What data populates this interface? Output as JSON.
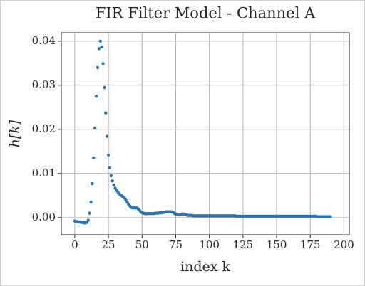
{
  "chart_data": {
    "type": "scatter",
    "title": "FIR Filter Model - Channel A",
    "x_label": "index k",
    "y_label": "h[k]",
    "x": [
      0,
      1,
      2,
      3,
      4,
      5,
      6,
      7,
      8,
      9,
      10,
      11,
      12,
      13,
      14,
      15,
      16,
      17,
      18,
      19,
      20,
      21,
      22,
      23,
      24,
      25,
      26,
      27,
      28,
      29,
      30,
      31,
      32,
      33,
      34,
      35,
      36,
      37,
      38,
      39,
      40,
      41,
      42,
      43,
      44,
      45,
      46,
      47,
      48,
      49,
      50,
      51,
      52,
      53,
      54,
      55,
      56,
      57,
      58,
      59,
      60,
      61,
      62,
      63,
      64,
      65,
      66,
      67,
      68,
      69,
      70,
      71,
      72,
      73,
      74,
      75,
      76,
      77,
      78,
      79,
      80,
      81,
      82,
      83,
      84,
      85,
      86,
      87,
      88,
      89,
      90,
      91,
      92,
      93,
      94,
      95,
      96,
      97,
      98,
      99,
      100,
      101,
      102,
      103,
      104,
      105,
      106,
      107,
      108,
      109,
      110,
      111,
      112,
      113,
      114,
      115,
      116,
      117,
      118,
      119,
      120,
      121,
      122,
      123,
      124,
      125,
      126,
      127,
      128,
      129,
      130,
      131,
      132,
      133,
      134,
      135,
      136,
      137,
      138,
      139,
      140,
      141,
      142,
      143,
      144,
      145,
      146,
      147,
      148,
      149,
      150,
      151,
      152,
      153,
      154,
      155,
      156,
      157,
      158,
      159,
      160,
      161,
      162,
      163,
      164,
      165,
      166,
      167,
      168,
      169,
      170,
      171,
      172,
      173,
      174,
      175,
      176,
      177,
      178,
      179,
      180,
      181,
      182,
      183,
      184,
      185,
      186,
      187,
      188,
      189,
      190
    ],
    "values": [
      -0.0008,
      -0.0009,
      -0.0009,
      -0.001,
      -0.001,
      -0.0011,
      -0.0011,
      -0.0012,
      -0.0012,
      -0.0011,
      -0.0006,
      0.001,
      0.0035,
      0.0077,
      0.0135,
      0.0203,
      0.0275,
      0.034,
      0.0383,
      0.04,
      0.0387,
      0.0349,
      0.0295,
      0.0237,
      0.0184,
      0.0142,
      0.0113,
      0.0095,
      0.0083,
      0.0074,
      0.0067,
      0.0062,
      0.0058,
      0.0054,
      0.0051,
      0.0049,
      0.0047,
      0.0044,
      0.004,
      0.0035,
      0.003,
      0.0026,
      0.0023,
      0.0022,
      0.0022,
      0.0022,
      0.0022,
      0.002,
      0.0017,
      0.0013,
      0.0011,
      0.001,
      0.0009,
      0.0009,
      0.0009,
      0.0009,
      0.0009,
      0.0009,
      0.0009,
      0.0009,
      0.001,
      0.001,
      0.001,
      0.0011,
      0.0011,
      0.0011,
      0.0012,
      0.0012,
      0.0013,
      0.0013,
      0.0013,
      0.0013,
      0.0013,
      0.0012,
      0.001,
      0.0008,
      0.0007,
      0.0006,
      0.0006,
      0.0007,
      0.0008,
      0.0008,
      0.0007,
      0.0006,
      0.0005,
      0.0005,
      0.0005,
      0.0005,
      0.0004,
      0.0004,
      0.0004,
      0.0004,
      0.0004,
      0.0004,
      0.0004,
      0.0004,
      0.0004,
      0.0004,
      0.0004,
      0.0004,
      0.0004,
      0.0004,
      0.0004,
      0.0004,
      0.0004,
      0.0004,
      0.0004,
      0.0004,
      0.0004,
      0.0004,
      0.0004,
      0.0004,
      0.0004,
      0.0004,
      0.0004,
      0.0004,
      0.0004,
      0.0004,
      0.0004,
      0.0004,
      0.0003,
      0.0003,
      0.0003,
      0.0003,
      0.0003,
      0.0003,
      0.0003,
      0.0003,
      0.0003,
      0.0003,
      0.0003,
      0.0003,
      0.0003,
      0.0003,
      0.0003,
      0.0003,
      0.0003,
      0.0003,
      0.0003,
      0.0003,
      0.0003,
      0.0003,
      0.0003,
      0.0003,
      0.0003,
      0.0003,
      0.0003,
      0.0003,
      0.0003,
      0.0003,
      0.0003,
      0.0003,
      0.0003,
      0.0003,
      0.0003,
      0.0003,
      0.0003,
      0.0003,
      0.0003,
      0.0003,
      0.0003,
      0.0003,
      0.0003,
      0.0003,
      0.0003,
      0.0003,
      0.0003,
      0.0003,
      0.0003,
      0.0003,
      0.0003,
      0.0003,
      0.0003,
      0.0003,
      0.0003,
      0.0003,
      0.0003,
      0.0003,
      0.0003,
      0.0003,
      0.0002,
      0.0002,
      0.0002,
      0.0002,
      0.0002,
      0.0002,
      0.0002,
      0.0002,
      0.0002,
      0.0002,
      0.0002
    ],
    "color": "#2f73ad",
    "xlim": [
      -10,
      204
    ],
    "ylim": [
      -0.0039,
      0.0419
    ],
    "xticks": [
      0,
      25,
      50,
      75,
      100,
      125,
      150,
      175,
      200
    ],
    "yticks": [
      {
        "value": 0,
        "label": "0.00"
      },
      0.01,
      0.02,
      0.03,
      0.04
    ],
    "grid": true
  }
}
